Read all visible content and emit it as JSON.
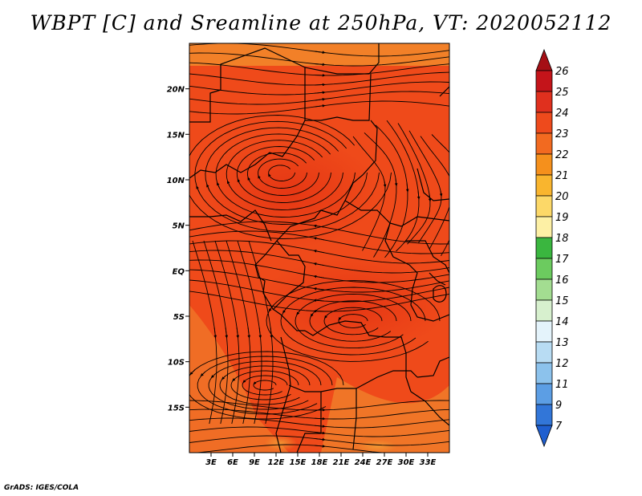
{
  "title": "WBPT [C] and Sreamline at 250hPa, VT: 2020052112",
  "footer": "GrADS: IGES/COLA",
  "map": {
    "lon_range": [
      0,
      36
    ],
    "lat_range": [
      -20,
      25
    ],
    "lat_ticks": [
      {
        "value": 20,
        "label": "20N"
      },
      {
        "value": 15,
        "label": "15N"
      },
      {
        "value": 10,
        "label": "10N"
      },
      {
        "value": 5,
        "label": "5N"
      },
      {
        "value": 0,
        "label": "EQ"
      },
      {
        "value": -5,
        "label": "5S"
      },
      {
        "value": -10,
        "label": "10S"
      },
      {
        "value": -15,
        "label": "15S"
      }
    ],
    "lon_ticks": [
      {
        "value": 3,
        "label": "3E"
      },
      {
        "value": 6,
        "label": "6E"
      },
      {
        "value": 9,
        "label": "9E"
      },
      {
        "value": 12,
        "label": "12E"
      },
      {
        "value": 15,
        "label": "15E"
      },
      {
        "value": 18,
        "label": "18E"
      },
      {
        "value": 21,
        "label": "21E"
      },
      {
        "value": 24,
        "label": "24E"
      },
      {
        "value": 27,
        "label": "27E"
      },
      {
        "value": 30,
        "label": "30E"
      },
      {
        "value": 33,
        "label": "33E"
      }
    ],
    "field_colors": {
      "base": "#ef4a1a",
      "deep": "#e63414",
      "light": "#f57a28",
      "warm": "#f08f2c"
    }
  },
  "colorbar": {
    "labels": [
      "26",
      "25",
      "24",
      "23",
      "22",
      "21",
      "20",
      "19",
      "18",
      "17",
      "16",
      "15",
      "14",
      "13",
      "12",
      "11",
      "9",
      "7"
    ],
    "colors": [
      "#a50f15",
      "#c4141a",
      "#e0301e",
      "#ee4a1c",
      "#f26a20",
      "#f5901c",
      "#f9b52e",
      "#fcd868",
      "#fdf0a5",
      "#3ab63f",
      "#6ccb5f",
      "#a3dd91",
      "#d7f0ce",
      "#e4f3fb",
      "#b8dcf3",
      "#8cc2ec",
      "#5c9ee4",
      "#3276d8",
      "#1f5fd0"
    ]
  }
}
